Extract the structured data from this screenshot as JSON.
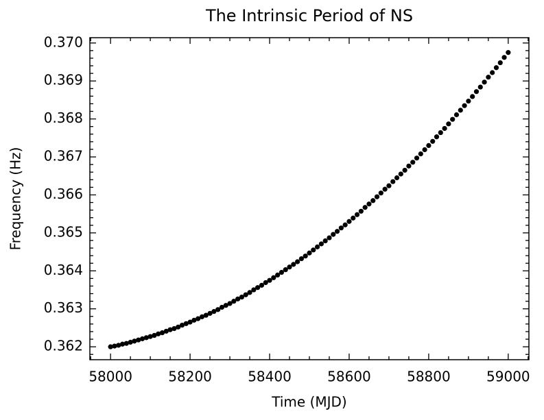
{
  "chart_data": {
    "type": "scatter",
    "title": "The Intrinsic Period of NS",
    "xlabel": "Time (MJD)",
    "ylabel": "Frequency (Hz)",
    "color": "#000000",
    "x": [
      58000,
      58010,
      58020,
      58030,
      58040,
      58050,
      58060,
      58070,
      58080,
      58090,
      58100,
      58110,
      58120,
      58130,
      58140,
      58150,
      58160,
      58170,
      58180,
      58190,
      58200,
      58210,
      58220,
      58230,
      58240,
      58250,
      58260,
      58270,
      58280,
      58290,
      58300,
      58310,
      58320,
      58330,
      58340,
      58350,
      58360,
      58370,
      58380,
      58390,
      58400,
      58410,
      58420,
      58430,
      58440,
      58450,
      58460,
      58470,
      58480,
      58490,
      58500,
      58510,
      58520,
      58530,
      58540,
      58550,
      58560,
      58570,
      58580,
      58590,
      58600,
      58610,
      58620,
      58630,
      58640,
      58650,
      58660,
      58670,
      58680,
      58690,
      58700,
      58710,
      58720,
      58730,
      58740,
      58750,
      58760,
      58770,
      58780,
      58790,
      58800,
      58810,
      58820,
      58830,
      58840,
      58850,
      58860,
      58870,
      58880,
      58890,
      58900,
      58910,
      58920,
      58930,
      58940,
      58950,
      58960,
      58970,
      58980,
      58990,
      59000
    ],
    "values": [
      0.362,
      0.36202,
      0.36204,
      0.36207,
      0.36209,
      0.36212,
      0.36215,
      0.36218,
      0.36221,
      0.36224,
      0.36227,
      0.3623,
      0.36234,
      0.36237,
      0.36241,
      0.36245,
      0.36248,
      0.36252,
      0.36257,
      0.36261,
      0.36265,
      0.3627,
      0.36274,
      0.36279,
      0.36283,
      0.36288,
      0.36293,
      0.36298,
      0.36304,
      0.36309,
      0.36314,
      0.3632,
      0.36326,
      0.36331,
      0.36337,
      0.36343,
      0.3635,
      0.36356,
      0.36362,
      0.36369,
      0.36375,
      0.36382,
      0.36389,
      0.36396,
      0.36403,
      0.3641,
      0.36417,
      0.36424,
      0.36432,
      0.36439,
      0.36447,
      0.36455,
      0.36463,
      0.36471,
      0.36479,
      0.36487,
      0.36496,
      0.36504,
      0.36513,
      0.36521,
      0.3653,
      0.36539,
      0.36548,
      0.36557,
      0.36567,
      0.36576,
      0.36585,
      0.36595,
      0.36605,
      0.36615,
      0.36624,
      0.36635,
      0.36645,
      0.36655,
      0.36665,
      0.36676,
      0.36686,
      0.36697,
      0.36708,
      0.36719,
      0.3673,
      0.36741,
      0.36753,
      0.36764,
      0.36775,
      0.36787,
      0.36799,
      0.36811,
      0.36823,
      0.36835,
      0.36847,
      0.36859,
      0.36872,
      0.36884,
      0.36897,
      0.3691,
      0.36922,
      0.36935,
      0.36948,
      0.36962,
      0.36975
    ],
    "xlim": [
      57948,
      59052
    ],
    "xticks": [
      58000,
      58200,
      58400,
      58600,
      58800,
      59000
    ],
    "xminorticks": [
      57950,
      58050,
      58100,
      58150,
      58250,
      58300,
      58350,
      58450,
      58500,
      58550,
      58650,
      58700,
      58750,
      58850,
      58900,
      58950,
      59050
    ],
    "ylim": [
      0.36166,
      0.37014
    ],
    "yticks": [
      0.362,
      0.363,
      0.364,
      0.365,
      0.366,
      0.367,
      0.368,
      0.369,
      {
        "value": 0.37,
        "label": "0.370"
      }
    ],
    "yminorticks": [
      0.3618,
      0.3622,
      0.3624,
      0.3626,
      0.3628,
      0.3632,
      0.3634,
      0.3636,
      0.3638,
      0.3642,
      0.3644,
      0.3646,
      0.3648,
      0.3652,
      0.3654,
      0.3656,
      0.3658,
      0.3662,
      0.3664,
      0.3666,
      0.3668,
      0.3672,
      0.3674,
      0.3676,
      0.3678,
      0.3682,
      0.3684,
      0.3686,
      0.3688,
      0.3692,
      0.3694,
      0.3696,
      0.3698
    ]
  }
}
